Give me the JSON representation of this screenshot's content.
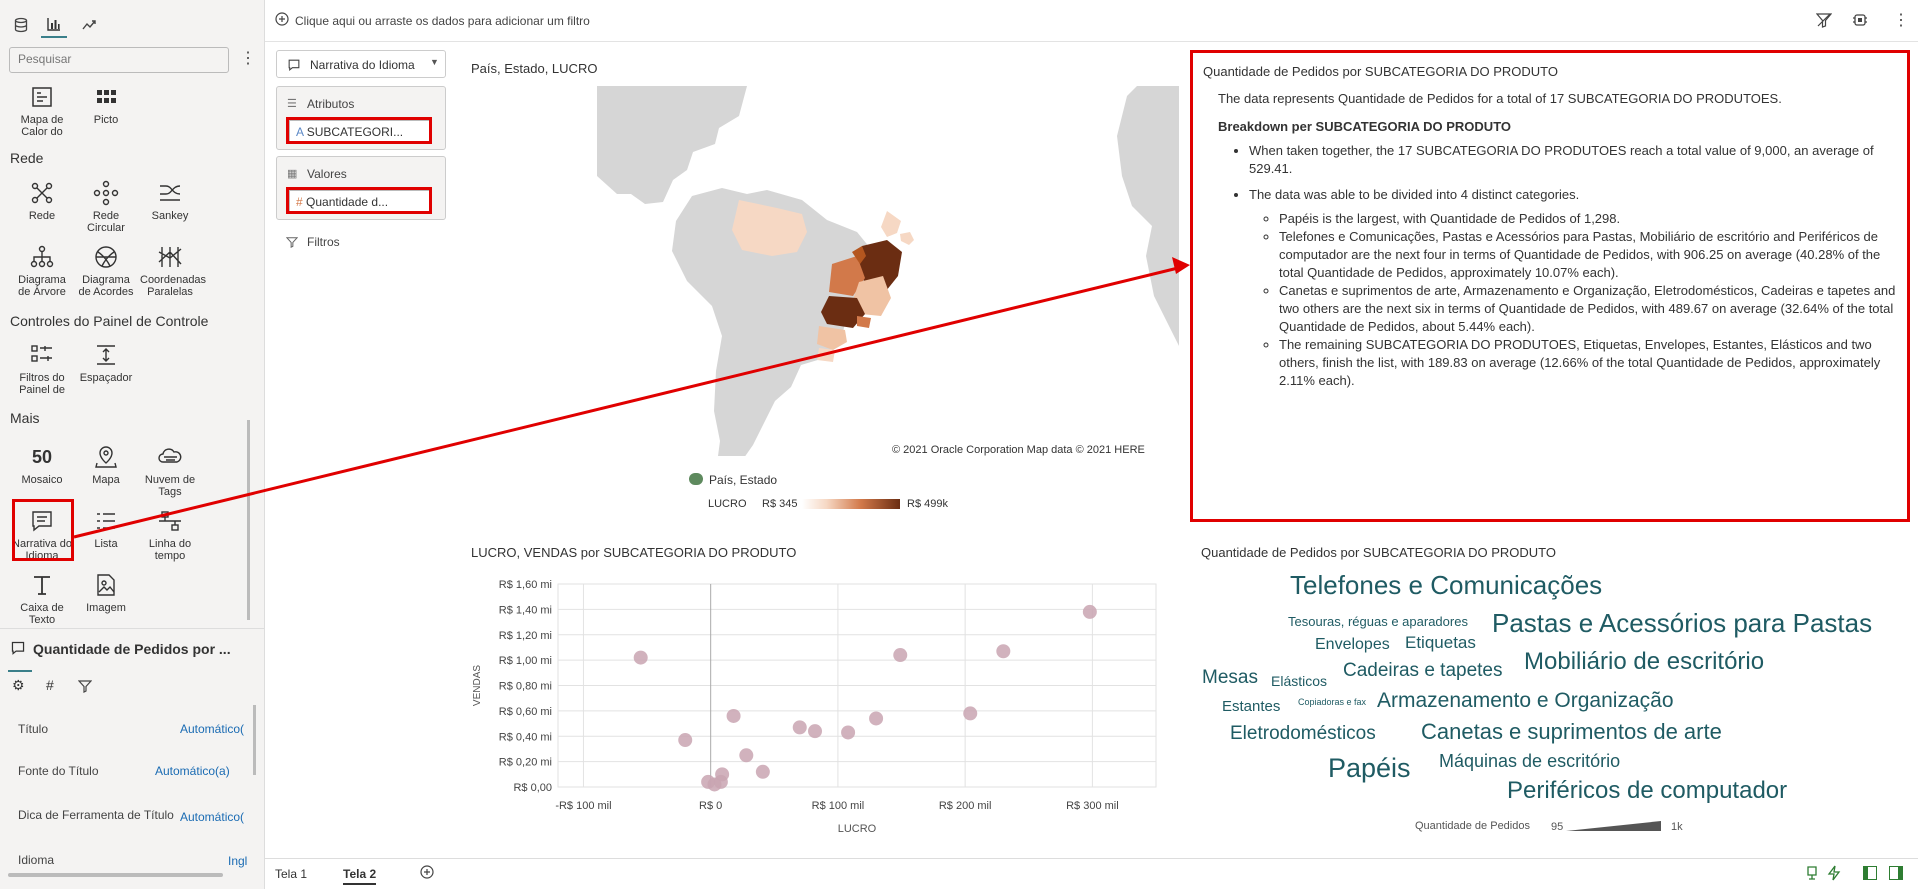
{
  "left_panel": {
    "search_placeholder": "Pesquisar",
    "items_top": [
      {
        "label": "Mapa de Calor do"
      },
      {
        "label": "Picto"
      }
    ],
    "section_rede": "Rede",
    "items_rede": [
      {
        "label": "Rede"
      },
      {
        "label": "Rede Circular"
      },
      {
        "label": "Sankey"
      },
      {
        "label": "Diagrama de Árvore"
      },
      {
        "label": "Diagrama de Acordes"
      },
      {
        "label": "Coordenadas Paralelas"
      }
    ],
    "section_controles": "Controles do Painel de Controle",
    "items_controles": [
      {
        "label": "Filtros do Painel de"
      },
      {
        "label": "Espaçador"
      }
    ],
    "section_mais": "Mais",
    "items_mais": [
      {
        "label": "Mosaico"
      },
      {
        "label": "Mapa"
      },
      {
        "label": "Nuvem de Tags"
      },
      {
        "label": "Narrativa do Idioma"
      },
      {
        "label": "Lista"
      },
      {
        "label": "Linha do tempo"
      },
      {
        "label": "Caixa de Texto"
      },
      {
        "label": "Imagem"
      }
    ],
    "mosaic_number": "50",
    "props_title": "Quantidade de Pedidos por ...",
    "props": [
      {
        "label": "Título",
        "value": "Automático("
      },
      {
        "label": "Fonte do Título",
        "value": "Automático(a)"
      },
      {
        "label": "Dica de Ferramenta de Título",
        "value": "Automático("
      },
      {
        "label": "Idioma",
        "value": "Ingl"
      }
    ]
  },
  "topbar": {
    "filter_hint": "Clique aqui ou arraste os dados para adicionar um filtro"
  },
  "grammar": {
    "viz_type": "Narrativa do Idioma",
    "atributos_label": "Atributos",
    "atributos_value": "SUBCATEGORI...",
    "valores_label": "Valores",
    "valores_value": "Quantidade d...",
    "filtros_label": "Filtros"
  },
  "map": {
    "title": "País, Estado, LUCRO",
    "copyright": "© 2021 Oracle Corporation   Map data © 2021 HERE",
    "legend_layer": "País, Estado",
    "legend_measure": "LUCRO",
    "legend_min": "R$ 345",
    "legend_max": "R$ 499k",
    "colors": {
      "low": "#f6d8c4",
      "mid": "#d2794a",
      "high": "#6b2d12",
      "land": "#d6d6d6",
      "water": "#ffffff"
    }
  },
  "narrative": {
    "title": "Quantidade de Pedidos por SUBCATEGORIA DO PRODUTO",
    "intro": "The data represents Quantidade de Pedidos for a total of 17 SUBCATEGORIA DO PRODUTOES.",
    "subheading": "Breakdown per SUBCATEGORIA DO PRODUTO",
    "bullet1": "When taken together, the 17 SUBCATEGORIA DO PRODUTOES reach a total value of 9,000, an average of 529.41.",
    "bullet2": "The data was able to be divided into 4 distinct categories.",
    "sub1": "Papéis is the largest, with Quantidade de Pedidos of 1,298.",
    "sub2": "Telefones e Comunicações, Pastas e Acessórios para Pastas, Mobiliário de escritório and Periféricos de computador are the next four in terms of Quantidade de Pedidos, with 906.25 on average (40.28% of the total Quantidade de Pedidos, approximately 10.07% each).",
    "sub3": "Canetas e suprimentos de arte, Armazenamento e Organização, Eletrodomésticos, Cadeiras e tapetes and two others are the next six in terms of Quantidade de Pedidos, with 489.67 on average (32.64% of the total Quantidade de Pedidos, about 5.44% each).",
    "sub4": "The remaining SUBCATEGORIA DO PRODUTOES, Etiquetas, Envelopes, Estantes, Elásticos and two others, finish the list, with 189.83 on average (12.66% of the total Quantidade de Pedidos, approximately 2.11% each)."
  },
  "scatter_title": "LUCRO, VENDAS por SUBCATEGORIA DO PRODUTO",
  "chart_data": {
    "type": "scatter",
    "title": "LUCRO, VENDAS por SUBCATEGORIA DO PRODUTO",
    "xlabel": "LUCRO",
    "ylabel": "VENDAS",
    "xlim": [
      -120,
      350
    ],
    "ylim": [
      0,
      1.6
    ],
    "x_ticks": [
      {
        "v": -100,
        "label": "-R$ 100 mil"
      },
      {
        "v": 0,
        "label": "R$ 0"
      },
      {
        "v": 100,
        "label": "R$ 100 mil"
      },
      {
        "v": 200,
        "label": "R$ 200 mil"
      },
      {
        "v": 300,
        "label": "R$ 300 mil"
      }
    ],
    "y_ticks": [
      {
        "v": 0,
        "label": "R$ 0,00"
      },
      {
        "v": 0.2,
        "label": "R$ 0,20 mi"
      },
      {
        "v": 0.4,
        "label": "R$ 0,40 mi"
      },
      {
        "v": 0.6,
        "label": "R$ 0,60 mi"
      },
      {
        "v": 0.8,
        "label": "R$ 0,80 mi"
      },
      {
        "v": 1.0,
        "label": "R$ 1,00 mi"
      },
      {
        "v": 1.2,
        "label": "R$ 1,20 mi"
      },
      {
        "v": 1.4,
        "label": "R$ 1,40 mi"
      },
      {
        "v": 1.6,
        "label": "R$ 1,60 mi"
      }
    ],
    "grid": true,
    "color": "#c9a5b1",
    "points": [
      {
        "x": -55,
        "y": 1.02
      },
      {
        "x": -20,
        "y": 0.37
      },
      {
        "x": -2,
        "y": 0.04
      },
      {
        "x": 3,
        "y": 0.02
      },
      {
        "x": 8,
        "y": 0.04
      },
      {
        "x": 9,
        "y": 0.1
      },
      {
        "x": 18,
        "y": 0.56
      },
      {
        "x": 28,
        "y": 0.25
      },
      {
        "x": 41,
        "y": 0.12
      },
      {
        "x": 70,
        "y": 0.47
      },
      {
        "x": 82,
        "y": 0.44
      },
      {
        "x": 108,
        "y": 0.43
      },
      {
        "x": 130,
        "y": 0.54
      },
      {
        "x": 149,
        "y": 1.04
      },
      {
        "x": 204,
        "y": 0.58
      },
      {
        "x": 230,
        "y": 1.07
      },
      {
        "x": 298,
        "y": 1.38
      }
    ]
  },
  "tagcloud": {
    "title": "Quantidade de Pedidos por SUBCATEGORIA DO PRODUTO",
    "words": [
      {
        "text": "Telefones e Comunicações"
      },
      {
        "text": "Tesouras, réguas e aparadores"
      },
      {
        "text": "Pastas e Acessórios para Pastas"
      },
      {
        "text": "Envelopes"
      },
      {
        "text": "Etiquetas"
      },
      {
        "text": "Mesas"
      },
      {
        "text": "Elásticos"
      },
      {
        "text": "Cadeiras e tapetes"
      },
      {
        "text": "Mobiliário de escritório"
      },
      {
        "text": "Estantes"
      },
      {
        "text": "Copiadoras e fax"
      },
      {
        "text": "Armazenamento e Organização"
      },
      {
        "text": "Eletrodomésticos"
      },
      {
        "text": "Canetas e suprimentos de arte"
      },
      {
        "text": "Papéis"
      },
      {
        "text": "Máquinas de escritório"
      },
      {
        "text": "Periféricos de computador"
      }
    ],
    "legend_measure": "Quantidade de Pedidos",
    "legend_min": "95",
    "legend_max": "1k"
  },
  "bottom": {
    "tabs": [
      {
        "label": "Tela 1"
      },
      {
        "label": "Tela 2"
      }
    ]
  }
}
